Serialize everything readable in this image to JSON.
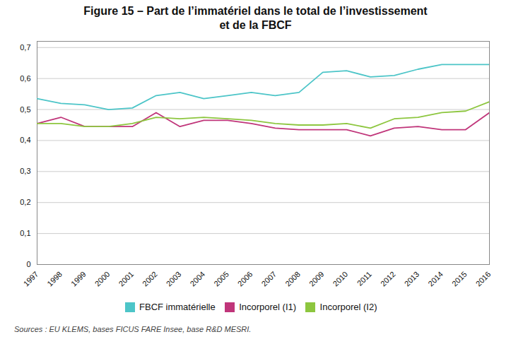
{
  "chart_data": {
    "type": "line",
    "title": "Figure 15 – Part de l’immatériel dans le total de l’investissement",
    "subtitle": "et de la FBCF",
    "source": "Sources : EU KLEMS, bases FICUS FARE Insee, base R&D MESRI.",
    "x": [
      1997,
      1998,
      1999,
      2000,
      2001,
      2002,
      2003,
      2004,
      2005,
      2006,
      2007,
      2008,
      2009,
      2010,
      2011,
      2012,
      2013,
      2014,
      2015,
      2016
    ],
    "xlim": [
      1997,
      2016
    ],
    "xticks": [
      1997,
      1998,
      1999,
      2000,
      2001,
      2002,
      2003,
      2004,
      2005,
      2006,
      2007,
      2008,
      2009,
      2010,
      2011,
      2012,
      2013,
      2014,
      2015,
      2016
    ],
    "series": [
      {
        "name": "FBCF immatérielle",
        "color": "#4DC5C8",
        "values": [
          0.535,
          0.52,
          0.515,
          0.5,
          0.505,
          0.545,
          0.555,
          0.535,
          0.545,
          0.555,
          0.545,
          0.555,
          0.62,
          0.625,
          0.605,
          0.61,
          0.63,
          0.645,
          0.645,
          0.645
        ]
      },
      {
        "name": "Incorporel (I1)",
        "color": "#C0357A",
        "values": [
          0.455,
          0.475,
          0.445,
          0.445,
          0.445,
          0.49,
          0.445,
          0.465,
          0.465,
          0.455,
          0.44,
          0.435,
          0.435,
          0.435,
          0.415,
          0.44,
          0.445,
          0.435,
          0.435,
          0.49
        ]
      },
      {
        "name": "Incorporel (I2)",
        "color": "#8DC63F",
        "values": [
          0.455,
          0.455,
          0.445,
          0.445,
          0.455,
          0.475,
          0.47,
          0.475,
          0.47,
          0.465,
          0.455,
          0.45,
          0.45,
          0.455,
          0.44,
          0.47,
          0.475,
          0.49,
          0.495,
          0.525
        ]
      }
    ],
    "ylim": [
      0,
      0.72
    ],
    "yticks": [
      0,
      {
        "value": 0.1,
        "label": "0,1"
      },
      {
        "value": 0.2,
        "label": "0,2"
      },
      {
        "value": 0.3,
        "label": "0,3"
      },
      {
        "value": 0.4,
        "label": "0,4"
      },
      {
        "value": 0.5,
        "label": "0,5"
      },
      {
        "value": 0.6,
        "label": "0,6"
      },
      {
        "value": 0.7,
        "label": "0,7"
      }
    ],
    "grid": true,
    "legend": "bottom"
  }
}
